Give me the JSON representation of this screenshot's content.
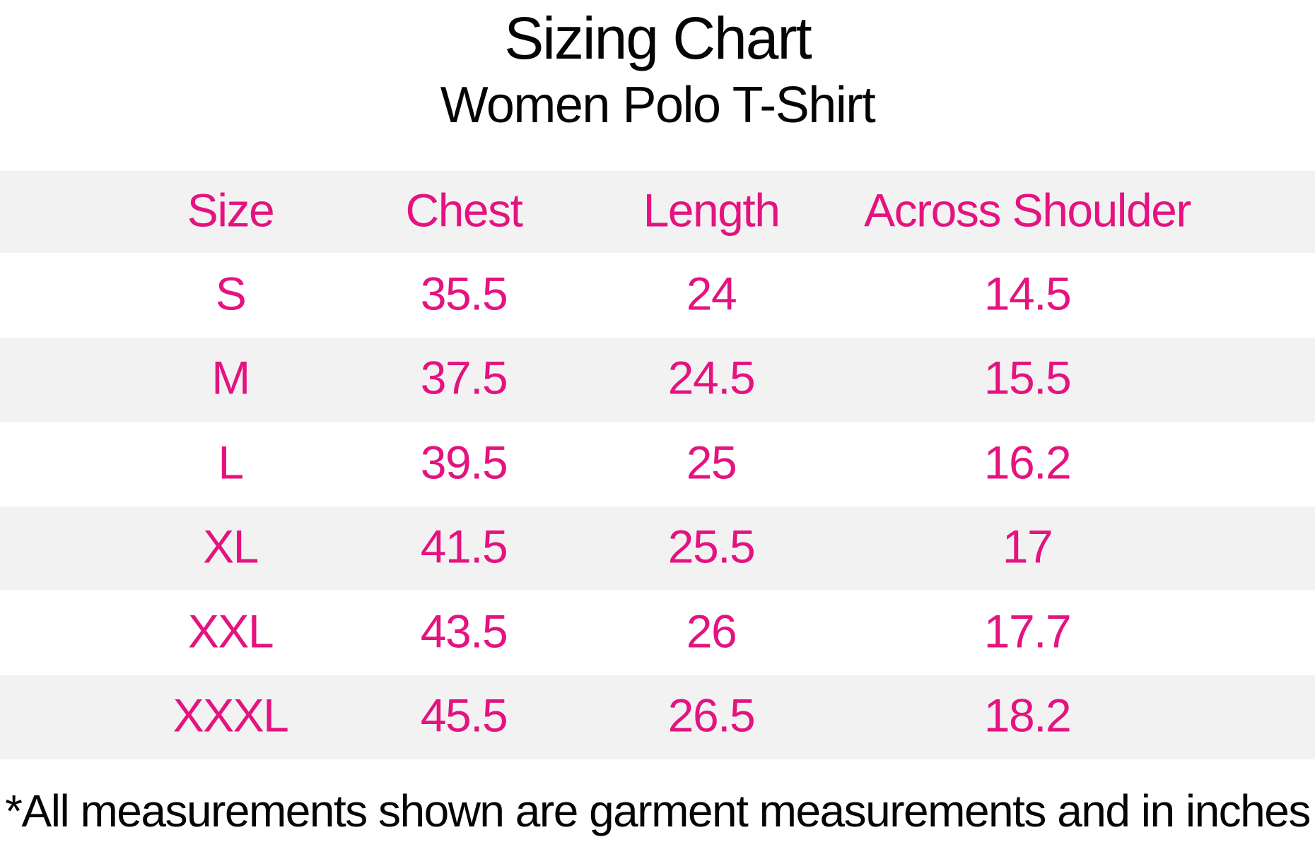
{
  "chart_data": {
    "type": "table",
    "title": "Sizing Chart",
    "subtitle": "Women Polo T-Shirt",
    "columns": [
      "Size",
      "Chest",
      "Length",
      "Across Shoulder"
    ],
    "rows": [
      [
        "S",
        "35.5",
        "24",
        "14.5"
      ],
      [
        "M",
        "37.5",
        "24.5",
        "15.5"
      ],
      [
        "L",
        "39.5",
        "25",
        "16.2"
      ],
      [
        "XL",
        "41.5",
        "25.5",
        "17"
      ],
      [
        "XXL",
        "43.5",
        "26",
        "17.7"
      ],
      [
        "XXXL",
        "45.5",
        "26.5",
        "18.2"
      ]
    ],
    "footnote": "*All measurements shown are garment measurements and in inches"
  },
  "colors": {
    "accent_pink": "#e41380",
    "row_shade_gray": "#f2f2f3",
    "text_black": "#050505",
    "background": "#ffffff"
  }
}
